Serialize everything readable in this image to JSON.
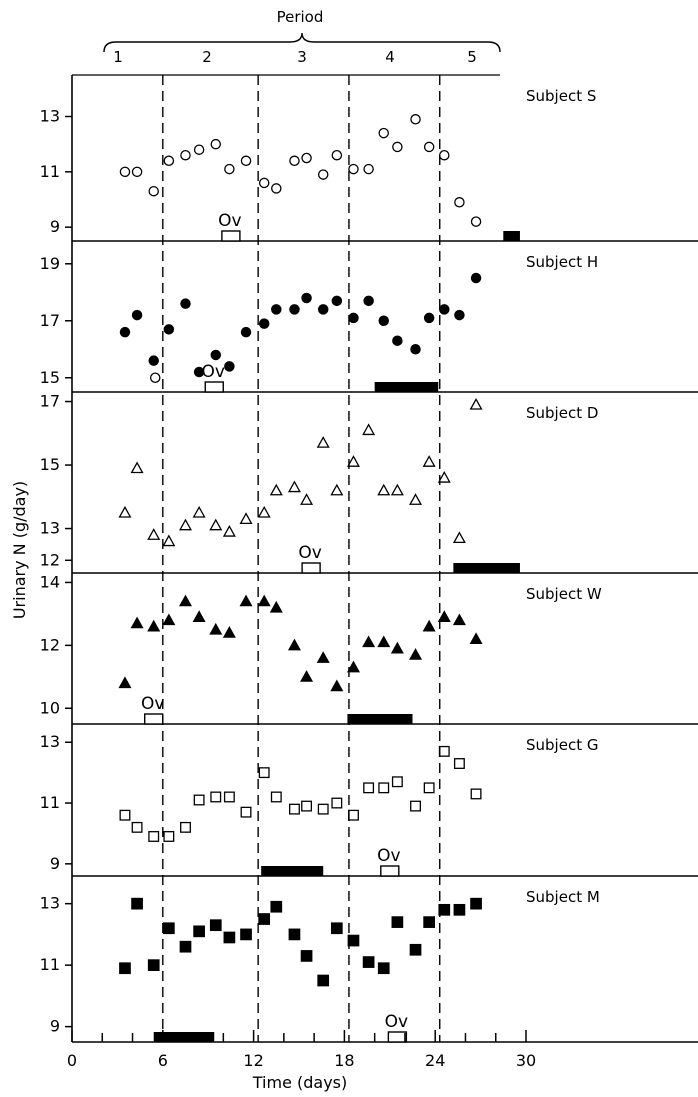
{
  "chart_data": {
    "type": "scatter",
    "top_label": "Period",
    "periods": [
      "1",
      "2",
      "3",
      "4",
      "5"
    ],
    "xlabel": "Time (days)",
    "ylabel": "Urinary N (g/day)",
    "x_ticks": [
      0,
      6,
      12,
      18,
      24,
      30
    ],
    "x_tick_labels": [
      "0",
      "6",
      "12",
      "18",
      "24",
      "30"
    ],
    "xlim": [
      0,
      45
    ],
    "period_boundaries_days": [
      6,
      12.3,
      18.3,
      24.3
    ],
    "ov_label": "Ov",
    "panels": [
      {
        "subject": "Subject S",
        "marker": "circle-open",
        "ylim": [
          8.5,
          14.5
        ],
        "yticks": [
          9,
          11,
          13
        ],
        "ytick_labels": [
          "9",
          "11",
          "13"
        ],
        "points": [
          [
            3.5,
            11.0
          ],
          [
            4.3,
            11.0
          ],
          [
            5.4,
            10.3
          ],
          [
            6.4,
            11.4
          ],
          [
            7.5,
            11.6
          ],
          [
            8.4,
            11.8
          ],
          [
            9.5,
            12.0
          ],
          [
            10.4,
            11.1
          ],
          [
            11.5,
            11.4
          ],
          [
            12.7,
            10.6
          ],
          [
            13.5,
            10.4
          ],
          [
            14.7,
            11.4
          ],
          [
            15.5,
            11.5
          ],
          [
            16.6,
            10.9
          ],
          [
            17.5,
            11.6
          ],
          [
            18.6,
            11.1
          ],
          [
            19.6,
            11.1
          ],
          [
            20.6,
            12.4
          ],
          [
            21.5,
            11.9
          ],
          [
            22.7,
            12.9
          ],
          [
            23.6,
            11.9
          ],
          [
            24.6,
            11.6
          ],
          [
            25.6,
            9.9
          ],
          [
            26.7,
            9.2
          ]
        ],
        "ovulation_day": 10.5,
        "bar": {
          "start": 28.5,
          "end": 29.6
        }
      },
      {
        "subject": "Subject H",
        "marker": "circle-filled",
        "ylim": [
          14.5,
          19.8
        ],
        "yticks": [
          15,
          17,
          19
        ],
        "ytick_labels": [
          "15",
          "17",
          "19"
        ],
        "points": [
          [
            3.5,
            16.6
          ],
          [
            4.3,
            17.2
          ],
          [
            5.4,
            15.6
          ],
          [
            6.4,
            16.7
          ],
          [
            7.5,
            17.6
          ],
          [
            8.4,
            15.2
          ],
          [
            9.5,
            15.8
          ],
          [
            10.4,
            15.4
          ],
          [
            11.5,
            16.6
          ],
          [
            12.7,
            16.9
          ],
          [
            13.5,
            17.4
          ],
          [
            14.7,
            17.4
          ],
          [
            15.5,
            17.8
          ],
          [
            16.6,
            17.4
          ],
          [
            17.5,
            17.7
          ],
          [
            18.6,
            17.1
          ],
          [
            19.6,
            17.7
          ],
          [
            20.6,
            17.0
          ],
          [
            21.5,
            16.3
          ],
          [
            22.7,
            16.0
          ],
          [
            23.6,
            17.1
          ],
          [
            24.6,
            17.4
          ],
          [
            25.6,
            17.2
          ],
          [
            26.7,
            18.5
          ]
        ],
        "open_points": [
          [
            5.5,
            15.0
          ]
        ],
        "ovulation_day": 9.4,
        "bar": {
          "start": 20.0,
          "end": 24.2
        }
      },
      {
        "subject": "Subject D",
        "marker": "triangle-open",
        "ylim": [
          11.6,
          17.3
        ],
        "yticks": [
          12,
          13,
          15,
          17
        ],
        "ytick_labels": [
          "12",
          "13",
          "15",
          "17"
        ],
        "points": [
          [
            3.5,
            13.5
          ],
          [
            4.3,
            14.9
          ],
          [
            5.4,
            12.8
          ],
          [
            6.4,
            12.6
          ],
          [
            7.5,
            13.1
          ],
          [
            8.4,
            13.5
          ],
          [
            9.5,
            13.1
          ],
          [
            10.4,
            12.9
          ],
          [
            11.5,
            13.3
          ],
          [
            12.7,
            13.5
          ],
          [
            13.5,
            14.2
          ],
          [
            14.7,
            14.3
          ],
          [
            15.5,
            13.9
          ],
          [
            16.6,
            15.7
          ],
          [
            17.5,
            14.2
          ],
          [
            18.6,
            15.1
          ],
          [
            19.6,
            16.1
          ],
          [
            20.6,
            14.2
          ],
          [
            21.5,
            14.2
          ],
          [
            22.7,
            13.9
          ],
          [
            23.6,
            15.1
          ],
          [
            24.6,
            14.6
          ],
          [
            25.6,
            12.7
          ],
          [
            26.7,
            16.9
          ]
        ],
        "ovulation_day": 15.8,
        "bar": {
          "start": 25.2,
          "end": 29.6
        }
      },
      {
        "subject": "Subject W",
        "marker": "triangle-filled",
        "ylim": [
          9.5,
          14.3
        ],
        "yticks": [
          10,
          12,
          14
        ],
        "ytick_labels": [
          "10",
          "12",
          "14"
        ],
        "points": [
          [
            3.5,
            10.8
          ],
          [
            4.3,
            12.7
          ],
          [
            5.4,
            12.6
          ],
          [
            6.4,
            12.8
          ],
          [
            7.5,
            13.4
          ],
          [
            8.4,
            12.9
          ],
          [
            9.5,
            12.5
          ],
          [
            10.4,
            12.4
          ],
          [
            11.5,
            13.4
          ],
          [
            12.7,
            13.4
          ],
          [
            13.5,
            13.2
          ],
          [
            14.7,
            12.0
          ],
          [
            15.5,
            11.0
          ],
          [
            16.6,
            11.6
          ],
          [
            17.5,
            10.7
          ],
          [
            18.6,
            11.3
          ],
          [
            19.6,
            12.1
          ],
          [
            20.6,
            12.1
          ],
          [
            21.5,
            11.9
          ],
          [
            22.7,
            11.7
          ],
          [
            23.6,
            12.6
          ],
          [
            24.6,
            12.9
          ],
          [
            25.6,
            12.8
          ],
          [
            26.7,
            12.2
          ]
        ],
        "ovulation_day": 5.4,
        "bar": {
          "start": 18.2,
          "end": 22.5
        }
      },
      {
        "subject": "Subject G",
        "marker": "square-open",
        "ylim": [
          8.6,
          13.6
        ],
        "yticks": [
          9,
          11,
          13
        ],
        "ytick_labels": [
          "9",
          "11",
          "13"
        ],
        "points": [
          [
            3.5,
            10.6
          ],
          [
            4.3,
            10.2
          ],
          [
            5.4,
            9.9
          ],
          [
            6.4,
            9.9
          ],
          [
            7.5,
            10.2
          ],
          [
            8.4,
            11.1
          ],
          [
            9.5,
            11.2
          ],
          [
            10.4,
            11.2
          ],
          [
            11.5,
            10.7
          ],
          [
            12.7,
            12.0
          ],
          [
            13.5,
            11.2
          ],
          [
            14.7,
            10.8
          ],
          [
            15.5,
            10.9
          ],
          [
            16.6,
            10.8
          ],
          [
            17.5,
            11.0
          ],
          [
            18.6,
            10.6
          ],
          [
            19.6,
            11.5
          ],
          [
            20.6,
            11.5
          ],
          [
            21.5,
            11.7
          ],
          [
            22.7,
            10.9
          ],
          [
            23.6,
            11.5
          ],
          [
            24.6,
            12.7
          ],
          [
            25.6,
            12.3
          ],
          [
            26.7,
            11.3
          ]
        ],
        "ovulation_day": 21.0,
        "bar": {
          "start": 12.5,
          "end": 16.6
        }
      },
      {
        "subject": "Subject M",
        "marker": "square-filled",
        "ylim": [
          8.5,
          13.9
        ],
        "yticks": [
          9,
          11,
          13
        ],
        "ytick_labels": [
          "9",
          "11",
          "13"
        ],
        "points": [
          [
            3.5,
            10.9
          ],
          [
            4.3,
            13.0
          ],
          [
            5.4,
            11.0
          ],
          [
            6.4,
            12.2
          ],
          [
            7.5,
            11.6
          ],
          [
            8.4,
            12.1
          ],
          [
            9.5,
            12.3
          ],
          [
            10.4,
            11.9
          ],
          [
            11.5,
            12.0
          ],
          [
            12.7,
            12.5
          ],
          [
            13.5,
            12.9
          ],
          [
            14.7,
            12.0
          ],
          [
            15.5,
            11.3
          ],
          [
            16.6,
            10.5
          ],
          [
            17.5,
            12.2
          ],
          [
            18.6,
            11.8
          ],
          [
            19.6,
            11.1
          ],
          [
            20.6,
            10.9
          ],
          [
            21.5,
            12.4
          ],
          [
            22.7,
            11.5
          ],
          [
            23.6,
            12.4
          ],
          [
            24.6,
            12.8
          ],
          [
            25.6,
            12.8
          ],
          [
            26.7,
            13.0
          ]
        ],
        "ovulation_day": 21.5,
        "bar": {
          "start": 5.4,
          "end": 9.4
        }
      }
    ]
  }
}
